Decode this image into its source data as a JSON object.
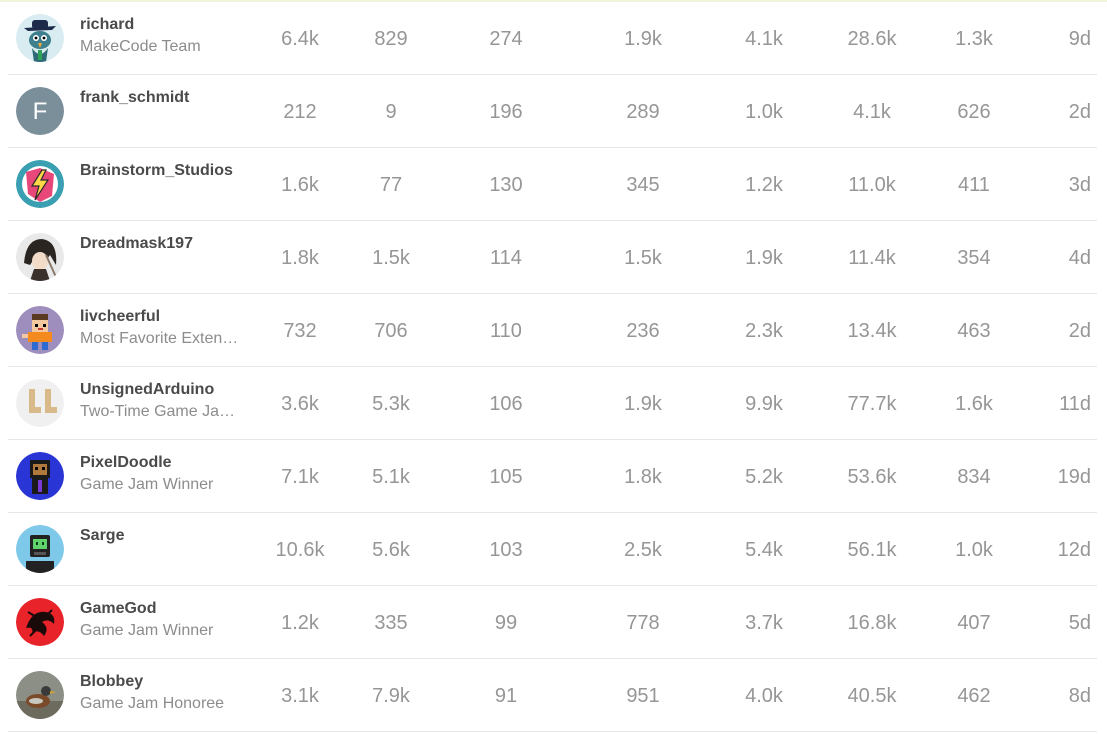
{
  "leaderboard": {
    "rows": [
      {
        "name": "richard",
        "title": "MakeCode Team",
        "stats": [
          "6.4k",
          "829",
          "274",
          "1.9k",
          "4.1k",
          "28.6k",
          "1.3k",
          "9d"
        ],
        "avatar": "hat-bird-avatar"
      },
      {
        "name": "frank_schmidt",
        "title": "",
        "stats": [
          "212",
          "9",
          "196",
          "289",
          "1.0k",
          "4.1k",
          "626",
          "2d"
        ],
        "avatar": "letter-avatar",
        "initial": "F"
      },
      {
        "name": "Brainstorm_Studios",
        "title": "",
        "stats": [
          "1.6k",
          "77",
          "130",
          "345",
          "1.2k",
          "11.0k",
          "411",
          "3d"
        ],
        "avatar": "lightning-avatar"
      },
      {
        "name": "Dreadmask197",
        "title": "",
        "stats": [
          "1.8k",
          "1.5k",
          "114",
          "1.5k",
          "1.9k",
          "11.4k",
          "354",
          "4d"
        ],
        "avatar": "anime-character-avatar"
      },
      {
        "name": "livcheerful",
        "title": "Most Favorite Extension Creator",
        "stats": [
          "732",
          "706",
          "110",
          "236",
          "2.3k",
          "13.4k",
          "463",
          "2d"
        ],
        "avatar": "pixel-person-avatar"
      },
      {
        "name": "UnsignedArduino",
        "title": "Two-Time Game Jam Winner",
        "stats": [
          "3.6k",
          "5.3k",
          "106",
          "1.9k",
          "9.9k",
          "77.7k",
          "1.6k",
          "11d"
        ],
        "avatar": "blocks-avatar"
      },
      {
        "name": "PixelDoodle",
        "title": "Game Jam Winner",
        "stats": [
          "7.1k",
          "5.1k",
          "105",
          "1.8k",
          "5.2k",
          "53.6k",
          "834",
          "19d"
        ],
        "avatar": "pixel-character-avatar"
      },
      {
        "name": "Sarge",
        "title": "",
        "stats": [
          "10.6k",
          "5.6k",
          "103",
          "2.5k",
          "5.4k",
          "56.1k",
          "1.0k",
          "12d"
        ],
        "avatar": "robot-avatar"
      },
      {
        "name": "GameGod",
        "title": "Game Jam Winner",
        "stats": [
          "1.2k",
          "335",
          "99",
          "778",
          "3.7k",
          "16.8k",
          "407",
          "5d"
        ],
        "avatar": "dragon-avatar"
      },
      {
        "name": "Blobbey",
        "title": "Game Jam Honoree",
        "stats": [
          "3.1k",
          "7.9k",
          "91",
          "951",
          "4.0k",
          "40.5k",
          "462",
          "8d"
        ],
        "avatar": "duck-photo-avatar"
      }
    ]
  }
}
